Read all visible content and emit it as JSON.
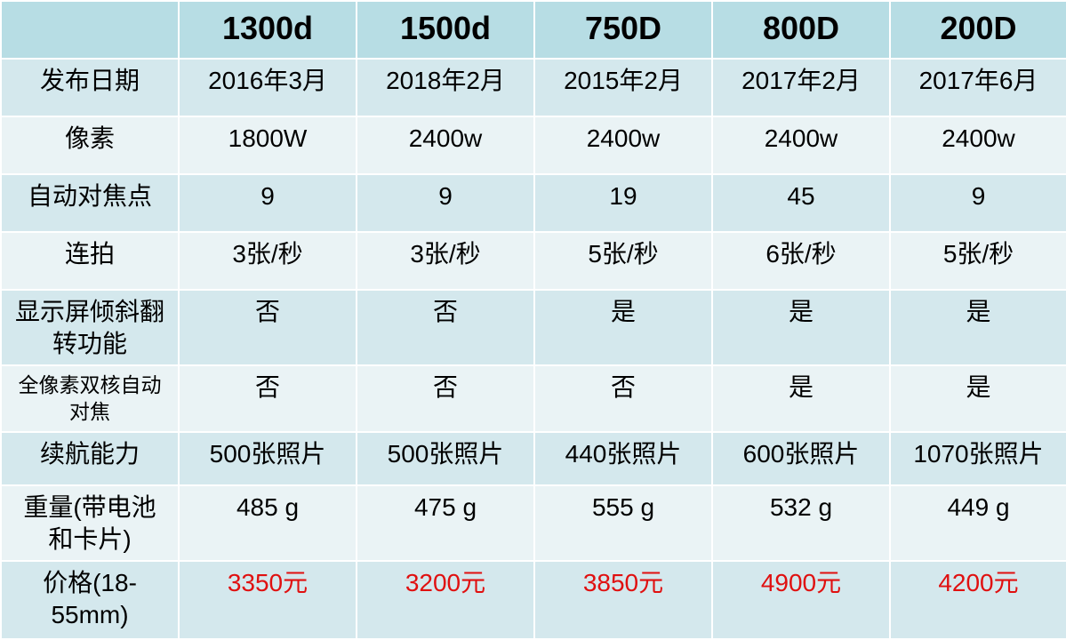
{
  "table": {
    "columns": [
      "1300d",
      "1500d",
      "750D",
      "800D",
      "200D"
    ],
    "rows": [
      {
        "label": "发布日期",
        "cells": [
          "2016年3月",
          "2018年2月",
          "2015年2月",
          "2017年2月",
          "2017年6月"
        ]
      },
      {
        "label": "像素",
        "cells": [
          "1800W",
          "2400w",
          "2400w",
          "2400w",
          "2400w"
        ]
      },
      {
        "label": "自动对焦点",
        "cells": [
          "9",
          "9",
          "19",
          "45",
          "9"
        ]
      },
      {
        "label": "连拍",
        "cells": [
          "3张/秒",
          "3张/秒",
          "5张/秒",
          "6张/秒",
          "5张/秒"
        ]
      },
      {
        "label": "显示屏倾斜翻转功能",
        "cells": [
          "否",
          "否",
          "是",
          "是",
          "是"
        ]
      },
      {
        "label": "全像素双核自动对焦",
        "cells": [
          "否",
          "否",
          "否",
          "是",
          "是"
        ]
      },
      {
        "label": "续航能力",
        "cells": [
          "500张照片",
          "500张照片",
          "440张照片",
          "600张照片",
          "1070张照片"
        ]
      },
      {
        "label": "重量(带电池和卡片)",
        "cells": [
          "485 g",
          "475 g",
          "555 g",
          "532 g",
          "449 g"
        ]
      },
      {
        "label": "价格(18-55mm)",
        "cells": [
          "3350元",
          "3200元",
          "3850元",
          "4900元",
          "4200元"
        ]
      }
    ]
  }
}
